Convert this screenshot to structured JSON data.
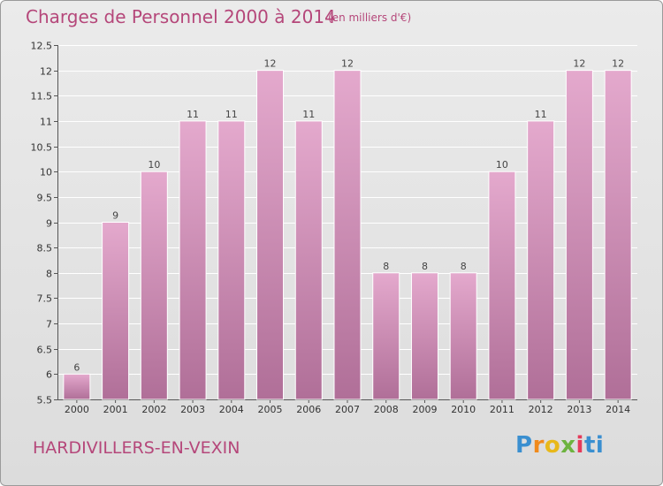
{
  "header": {
    "title": "Charges de Personnel 2000 à 2014",
    "subtitle": "(en milliers d'€)"
  },
  "footer": {
    "commune": "HARDIVILLERS-EN-VEXIN",
    "logo": [
      "P",
      "r",
      "o",
      "x",
      "i",
      "ti"
    ]
  },
  "colors": {
    "bar_top": "#e4a9cd",
    "bar_bottom": "#b06f98",
    "text_accent": "#b5477a",
    "grid": "#ffffff"
  },
  "chart_data": {
    "type": "bar",
    "title": "Charges de Personnel 2000 à 2014",
    "subtitle": "(en milliers d'€)",
    "categories": [
      "2000",
      "2001",
      "2002",
      "2003",
      "2004",
      "2005",
      "2006",
      "2007",
      "2008",
      "2009",
      "2010",
      "2011",
      "2012",
      "2013",
      "2014"
    ],
    "values": [
      6,
      9,
      10,
      11,
      11,
      12,
      11,
      12,
      8,
      8,
      8,
      10,
      11,
      12,
      12
    ],
    "value_labels": [
      "6",
      "9",
      "10",
      "11",
      "11",
      "12",
      "11",
      "12",
      "8",
      "8",
      "8",
      "10",
      "11",
      "12",
      "12"
    ],
    "ylim": [
      5.5,
      12.5
    ],
    "yticks": [
      5.5,
      6,
      6.5,
      7,
      7.5,
      8,
      8.5,
      9,
      9.5,
      10,
      10.5,
      11,
      11.5,
      12,
      12.5
    ],
    "ytick_labels": [
      "5.5",
      "6",
      "6.5",
      "7",
      "7.5",
      "8",
      "8.5",
      "9",
      "9.5",
      "10",
      "10.5",
      "11",
      "11.5",
      "12",
      "12.5"
    ],
    "grid": true,
    "xlabel": "",
    "ylabel": ""
  }
}
